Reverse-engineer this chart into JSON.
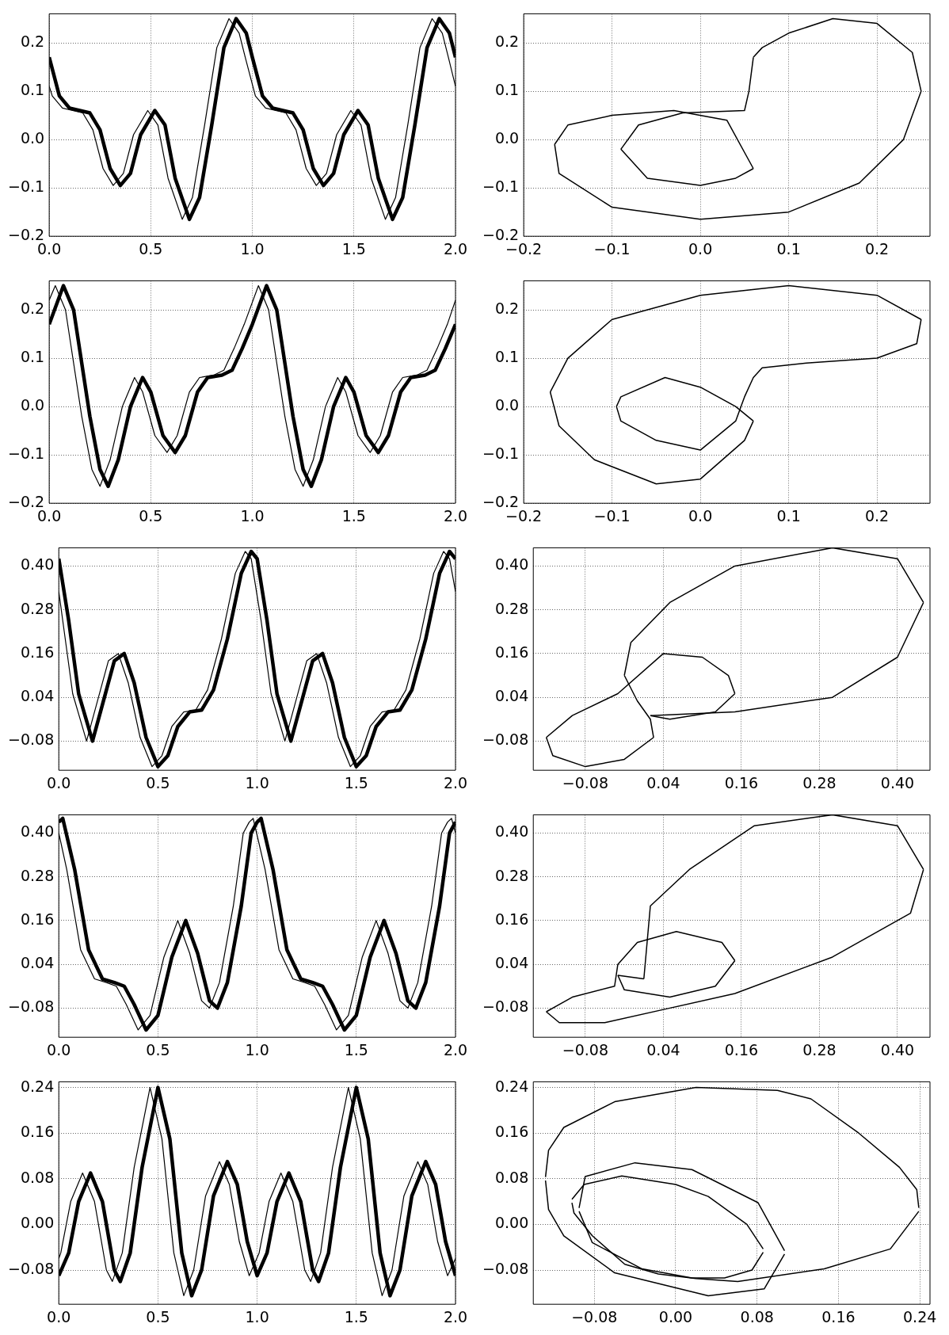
{
  "chart_data": [
    {
      "type": "line",
      "grid": true,
      "xlim": [
        0,
        2
      ],
      "ylim": [
        -0.2,
        0.26
      ],
      "xticks": [
        {
          "value": 0,
          "label": "0.0"
        },
        {
          "value": 0.5,
          "label": "0.5"
        },
        {
          "value": 1,
          "label": "1.0"
        },
        {
          "value": 1.5,
          "label": "1.5"
        },
        {
          "value": 2,
          "label": "2.0"
        }
      ],
      "yticks": [
        {
          "value": -0.2,
          "label": "−0.2"
        },
        {
          "value": -0.1,
          "label": "−0.1"
        },
        {
          "value": 0,
          "label": "0.0"
        },
        {
          "value": 0.1,
          "label": "0.1"
        },
        {
          "value": 0.2,
          "label": "0.2"
        }
      ],
      "series": [
        {
          "color": "#000000",
          "x": [
            0,
            0.015,
            0.065,
            0.115,
            0.165,
            0.215,
            0.265,
            0.315,
            0.365,
            0.415,
            0.485,
            0.535,
            0.585,
            0.655,
            0.705,
            0.765,
            0.825,
            0.885,
            0.935,
            0.965,
            1.015,
            1.065,
            1.115,
            1.165,
            1.215,
            1.265,
            1.315,
            1.365,
            1.415,
            1.485,
            1.535,
            1.585,
            1.655,
            1.705,
            1.765,
            1.825,
            1.885,
            1.935,
            1.965,
            2
          ],
          "values": [
            0.11,
            0.09,
            0.065,
            0.06,
            0.055,
            0.02,
            -0.06,
            -0.095,
            -0.07,
            0.01,
            0.06,
            0.03,
            -0.08,
            -0.165,
            -0.12,
            0.03,
            0.19,
            0.25,
            0.22,
            0.17,
            0.09,
            0.065,
            0.06,
            0.055,
            0.02,
            -0.06,
            -0.095,
            -0.07,
            0.01,
            0.06,
            0.03,
            -0.08,
            -0.165,
            -0.12,
            0.03,
            0.19,
            0.25,
            0.22,
            0.17,
            0.11
          ]
        },
        {
          "color": "#000000",
          "x": [
            0,
            0.05,
            0.1,
            0.15,
            0.2,
            0.25,
            0.3,
            0.35,
            0.4,
            0.45,
            0.52,
            0.57,
            0.62,
            0.69,
            0.74,
            0.8,
            0.86,
            0.92,
            0.97,
            1,
            1.05,
            1.1,
            1.15,
            1.2,
            1.25,
            1.3,
            1.35,
            1.4,
            1.45,
            1.52,
            1.57,
            1.62,
            1.69,
            1.74,
            1.8,
            1.86,
            1.92,
            1.97,
            2
          ],
          "values": [
            0.17,
            0.09,
            0.065,
            0.06,
            0.055,
            0.02,
            -0.06,
            -0.095,
            -0.07,
            0.01,
            0.06,
            0.03,
            -0.08,
            -0.165,
            -0.12,
            0.03,
            0.19,
            0.25,
            0.22,
            0.17,
            0.09,
            0.065,
            0.06,
            0.055,
            0.02,
            -0.06,
            -0.095,
            -0.07,
            0.01,
            0.06,
            0.03,
            -0.08,
            -0.165,
            -0.12,
            0.03,
            0.19,
            0.25,
            0.22,
            0.17
          ]
        }
      ]
    },
    {
      "type": "line",
      "grid": true,
      "xlim": [
        -0.2,
        0.26
      ],
      "ylim": [
        -0.2,
        0.26
      ],
      "xticks": [
        {
          "value": -0.2,
          "label": "−0.2"
        },
        {
          "value": -0.1,
          "label": "−0.1"
        },
        {
          "value": 0,
          "label": "0.0"
        },
        {
          "value": 0.1,
          "label": "0.1"
        },
        {
          "value": 0.2,
          "label": "0.2"
        }
      ],
      "yticks": [
        {
          "value": -0.2,
          "label": "−0.2"
        },
        {
          "value": -0.1,
          "label": "−0.1"
        },
        {
          "value": 0,
          "label": "0.0"
        },
        {
          "value": 0.1,
          "label": "0.1"
        },
        {
          "value": 0.2,
          "label": "0.2"
        }
      ],
      "series": [
        {
          "color": "#000000",
          "x": [
            0.06,
            0.07,
            0.1,
            0.15,
            0.2,
            0.24,
            0.25
          ],
          "values": [
            0.17,
            0.19,
            0.22,
            0.25,
            0.24,
            0.18,
            0.1
          ]
        },
        {
          "color": "#000000",
          "x": [
            -0.165,
            -0.16,
            -0.1,
            0,
            0.1,
            0.18,
            0.23,
            0.25
          ],
          "values": [
            -0.01,
            -0.07,
            -0.14,
            -0.165,
            -0.15,
            -0.09,
            0,
            0.1
          ]
        },
        {
          "color": "#000000",
          "x": [
            -0.165,
            -0.15,
            -0.1,
            -0.03,
            0.03,
            0.06
          ],
          "values": [
            -0.01,
            0.03,
            0.05,
            0.06,
            0.04,
            -0.06
          ]
        },
        {
          "color": "#000000",
          "x": [
            -0.09,
            -0.06,
            0,
            0.04,
            0.06
          ],
          "values": [
            -0.02,
            -0.08,
            -0.095,
            -0.08,
            -0.06
          ]
        },
        {
          "color": "#000000",
          "x": [
            -0.09,
            -0.07,
            -0.02,
            0.05,
            0.055,
            0.06
          ],
          "values": [
            -0.02,
            0.03,
            0.055,
            0.06,
            0.1,
            0.17
          ]
        }
      ]
    },
    {
      "type": "line",
      "grid": true,
      "xlim": [
        0,
        2
      ],
      "ylim": [
        -0.2,
        0.26
      ],
      "xticks": [
        {
          "value": 0,
          "label": "0.0"
        },
        {
          "value": 0.5,
          "label": "0.5"
        },
        {
          "value": 1,
          "label": "1.0"
        },
        {
          "value": 1.5,
          "label": "1.5"
        },
        {
          "value": 2,
          "label": "2.0"
        }
      ],
      "yticks": [
        {
          "value": -0.2,
          "label": "−0.2"
        },
        {
          "value": -0.1,
          "label": "−0.1"
        },
        {
          "value": 0,
          "label": "0.0"
        },
        {
          "value": 0.1,
          "label": "0.1"
        },
        {
          "value": 0.2,
          "label": "0.2"
        }
      ],
      "series": [
        {
          "color": "#000000",
          "x": [
            0,
            0.03,
            0.08,
            0.16,
            0.21,
            0.25,
            0.3,
            0.36,
            0.42,
            0.46,
            0.52,
            0.58,
            0.63,
            0.69,
            0.74,
            0.81,
            0.86,
            0.91,
            0.96,
            1.03,
            1.08,
            1.16,
            1.21,
            1.25,
            1.3,
            1.36,
            1.42,
            1.46,
            1.52,
            1.58,
            1.63,
            1.69,
            1.74,
            1.81,
            1.86,
            1.91,
            1.96,
            2
          ],
          "values": [
            0.22,
            0.25,
            0.2,
            -0.02,
            -0.13,
            -0.165,
            -0.11,
            0,
            0.06,
            0.03,
            -0.06,
            -0.095,
            -0.06,
            0.03,
            0.06,
            0.065,
            0.075,
            0.12,
            0.17,
            0.25,
            0.2,
            -0.02,
            -0.13,
            -0.165,
            -0.11,
            0,
            0.06,
            0.03,
            -0.06,
            -0.095,
            -0.06,
            0.03,
            0.06,
            0.065,
            0.075,
            0.12,
            0.17,
            0.22
          ]
        },
        {
          "color": "#000000",
          "x": [
            0,
            0.07,
            0.12,
            0.2,
            0.25,
            0.29,
            0.34,
            0.4,
            0.46,
            0.5,
            0.56,
            0.62,
            0.67,
            0.73,
            0.78,
            0.85,
            0.9,
            0.95,
            1,
            1.07,
            1.12,
            1.2,
            1.25,
            1.29,
            1.34,
            1.4,
            1.46,
            1.5,
            1.56,
            1.62,
            1.67,
            1.73,
            1.78,
            1.85,
            1.9,
            1.95,
            2
          ],
          "values": [
            0.17,
            0.25,
            0.2,
            -0.02,
            -0.13,
            -0.165,
            -0.11,
            0,
            0.06,
            0.03,
            -0.06,
            -0.095,
            -0.06,
            0.03,
            0.06,
            0.065,
            0.075,
            0.12,
            0.17,
            0.25,
            0.2,
            -0.02,
            -0.13,
            -0.165,
            -0.11,
            0,
            0.06,
            0.03,
            -0.06,
            -0.095,
            -0.06,
            0.03,
            0.06,
            0.065,
            0.075,
            0.12,
            0.17
          ]
        }
      ]
    },
    {
      "type": "line",
      "grid": true,
      "xlim": [
        -0.2,
        0.26
      ],
      "ylim": [
        -0.2,
        0.26
      ],
      "xticks": [
        {
          "value": -0.2,
          "label": "−0.2"
        },
        {
          "value": -0.1,
          "label": "−0.1"
        },
        {
          "value": 0,
          "label": "0.0"
        },
        {
          "value": 0.1,
          "label": "0.1"
        },
        {
          "value": 0.2,
          "label": "0.2"
        }
      ],
      "yticks": [
        {
          "value": -0.2,
          "label": "−0.2"
        },
        {
          "value": -0.1,
          "label": "−0.1"
        },
        {
          "value": 0,
          "label": "0.0"
        },
        {
          "value": 0.1,
          "label": "0.1"
        },
        {
          "value": 0.2,
          "label": "0.2"
        }
      ],
      "series": [
        {
          "color": "#000000",
          "x": [
            -0.17,
            -0.15,
            -0.1,
            0,
            0.1,
            0.2,
            0.25
          ],
          "values": [
            0.03,
            0.1,
            0.18,
            0.23,
            0.25,
            0.23,
            0.18
          ]
        },
        {
          "color": "#000000",
          "x": [
            -0.095,
            -0.09,
            -0.05,
            0,
            0.04,
            0.05,
            0.06,
            0.07,
            0.12,
            0.2,
            0.245,
            0.25
          ],
          "values": [
            0,
            -0.03,
            -0.07,
            -0.09,
            -0.03,
            0.02,
            0.06,
            0.08,
            0.09,
            0.1,
            0.13,
            0.18
          ]
        },
        {
          "color": "#000000",
          "x": [
            -0.095,
            -0.09,
            -0.04,
            0,
            0.04,
            0.06
          ],
          "values": [
            0,
            0.02,
            0.06,
            0.04,
            0,
            -0.03
          ]
        },
        {
          "color": "#000000",
          "x": [
            -0.17,
            -0.16,
            -0.12,
            -0.05,
            0,
            0.05,
            0.06
          ],
          "values": [
            0.03,
            -0.04,
            -0.11,
            -0.16,
            -0.15,
            -0.07,
            -0.03
          ]
        }
      ]
    },
    {
      "type": "line",
      "grid": true,
      "xlim": [
        0,
        2
      ],
      "ylim": [
        -0.16,
        0.45
      ],
      "xticks": [
        {
          "value": 0,
          "label": "0.0"
        },
        {
          "value": 0.5,
          "label": "0.5"
        },
        {
          "value": 1,
          "label": "1.0"
        },
        {
          "value": 1.5,
          "label": "1.5"
        },
        {
          "value": 2,
          "label": "2.0"
        }
      ],
      "yticks": [
        {
          "value": -0.08,
          "label": "−0.08"
        },
        {
          "value": 0.04,
          "label": "0.04"
        },
        {
          "value": 0.16,
          "label": "0.16"
        },
        {
          "value": 0.28,
          "label": "0.28"
        },
        {
          "value": 0.4,
          "label": "0.40"
        }
      ],
      "series": [
        {
          "color": "#000000",
          "x": [
            0,
            0.02,
            0.07,
            0.14,
            0.19,
            0.25,
            0.3,
            0.35,
            0.41,
            0.47,
            0.52,
            0.57,
            0.63,
            0.69,
            0.75,
            0.82,
            0.89,
            0.94,
            0.97,
            1.02,
            1.07,
            1.14,
            1.19,
            1.25,
            1.3,
            1.35,
            1.41,
            1.47,
            1.52,
            1.57,
            1.63,
            1.69,
            1.75,
            1.82,
            1.89,
            1.94,
            1.97,
            2
          ],
          "values": [
            0.33,
            0.25,
            0.05,
            -0.08,
            0.02,
            0.14,
            0.16,
            0.08,
            -0.07,
            -0.15,
            -0.12,
            -0.04,
            0,
            0.005,
            0.06,
            0.2,
            0.38,
            0.44,
            0.42,
            0.25,
            0.05,
            -0.08,
            0.02,
            0.14,
            0.16,
            0.08,
            -0.07,
            -0.15,
            -0.12,
            -0.04,
            0,
            0.005,
            0.06,
            0.2,
            0.38,
            0.44,
            0.42,
            0.33
          ]
        },
        {
          "color": "#000000",
          "x": [
            0,
            0.05,
            0.1,
            0.17,
            0.22,
            0.28,
            0.33,
            0.38,
            0.44,
            0.5,
            0.55,
            0.6,
            0.66,
            0.72,
            0.78,
            0.85,
            0.92,
            0.97,
            1,
            1.05,
            1.1,
            1.17,
            1.22,
            1.28,
            1.33,
            1.38,
            1.44,
            1.5,
            1.55,
            1.6,
            1.66,
            1.72,
            1.78,
            1.85,
            1.92,
            1.97,
            2
          ],
          "values": [
            0.42,
            0.25,
            0.05,
            -0.08,
            0.02,
            0.14,
            0.16,
            0.08,
            -0.07,
            -0.15,
            -0.12,
            -0.04,
            0,
            0.005,
            0.06,
            0.2,
            0.38,
            0.44,
            0.42,
            0.25,
            0.05,
            -0.08,
            0.02,
            0.14,
            0.16,
            0.08,
            -0.07,
            -0.15,
            -0.12,
            -0.04,
            0,
            0.005,
            0.06,
            0.2,
            0.38,
            0.44,
            0.42
          ]
        }
      ]
    },
    {
      "type": "line",
      "grid": true,
      "xlim": [
        -0.16,
        0.45
      ],
      "ylim": [
        -0.16,
        0.45
      ],
      "xticks": [
        {
          "value": -0.08,
          "label": "−0.08"
        },
        {
          "value": 0.04,
          "label": "0.04"
        },
        {
          "value": 0.16,
          "label": "0.16"
        },
        {
          "value": 0.28,
          "label": "0.28"
        },
        {
          "value": 0.4,
          "label": "0.40"
        }
      ],
      "yticks": [
        {
          "value": -0.08,
          "label": "−0.08"
        },
        {
          "value": 0.04,
          "label": "0.04"
        },
        {
          "value": 0.16,
          "label": "0.16"
        },
        {
          "value": 0.28,
          "label": "0.28"
        },
        {
          "value": 0.4,
          "label": "0.40"
        }
      ],
      "series": [
        {
          "color": "#000000",
          "x": [
            0.02,
            0.15,
            0.3,
            0.4,
            0.44
          ],
          "values": [
            -0.01,
            0,
            0.04,
            0.15,
            0.3
          ]
        },
        {
          "color": "#000000",
          "x": [
            -0.02,
            -0.01,
            0.05,
            0.15,
            0.3,
            0.4,
            0.44
          ],
          "values": [
            0.1,
            0.19,
            0.3,
            0.4,
            0.45,
            0.42,
            0.3
          ]
        },
        {
          "color": "#000000",
          "x": [
            -0.02,
            0,
            0.02,
            0.025
          ],
          "values": [
            0.1,
            0.03,
            -0.02,
            -0.07
          ]
        },
        {
          "color": "#000000",
          "x": [
            -0.14,
            -0.13,
            -0.08,
            -0.02,
            0.025
          ],
          "values": [
            -0.07,
            -0.12,
            -0.15,
            -0.13,
            -0.07
          ]
        },
        {
          "color": "#000000",
          "x": [
            -0.14,
            -0.1,
            -0.03,
            0.04,
            0.1,
            0.14,
            0.15
          ],
          "values": [
            -0.07,
            -0.01,
            0.05,
            0.16,
            0.15,
            0.1,
            0.05
          ]
        },
        {
          "color": "#000000",
          "x": [
            0.02,
            0.05,
            0.12,
            0.15
          ],
          "values": [
            -0.01,
            -0.02,
            0,
            0.05
          ]
        }
      ]
    },
    {
      "type": "line",
      "grid": true,
      "xlim": [
        0,
        2
      ],
      "ylim": [
        -0.16,
        0.45
      ],
      "xticks": [
        {
          "value": 0,
          "label": "0.0"
        },
        {
          "value": 0.5,
          "label": "0.5"
        },
        {
          "value": 1,
          "label": "1.0"
        },
        {
          "value": 1.5,
          "label": "1.5"
        },
        {
          "value": 2,
          "label": "2.0"
        }
      ],
      "yticks": [
        {
          "value": -0.08,
          "label": "−0.08"
        },
        {
          "value": 0.04,
          "label": "0.04"
        },
        {
          "value": 0.16,
          "label": "0.16"
        },
        {
          "value": 0.28,
          "label": "0.28"
        },
        {
          "value": 0.4,
          "label": "0.40"
        }
      ],
      "series": [
        {
          "color": "#000000",
          "x": [
            0,
            0.04,
            0.11,
            0.18,
            0.24,
            0.29,
            0.34,
            0.4,
            0.46,
            0.53,
            0.6,
            0.66,
            0.72,
            0.76,
            0.81,
            0.88,
            0.93,
            0.96,
            0.98,
            1.04,
            1.11,
            1.18,
            1.24,
            1.29,
            1.34,
            1.4,
            1.46,
            1.53,
            1.6,
            1.66,
            1.72,
            1.76,
            1.81,
            1.88,
            1.93,
            1.96,
            1.98,
            2
          ],
          "values": [
            0.4,
            0.3,
            0.08,
            0,
            -0.01,
            -0.02,
            -0.07,
            -0.14,
            -0.1,
            0.06,
            0.16,
            0.07,
            -0.06,
            -0.08,
            -0.01,
            0.2,
            0.4,
            0.43,
            0.44,
            0.3,
            0.08,
            0,
            -0.01,
            -0.02,
            -0.07,
            -0.14,
            -0.1,
            0.06,
            0.16,
            0.07,
            -0.06,
            -0.08,
            -0.01,
            0.2,
            0.4,
            0.43,
            0.44,
            0.4
          ]
        },
        {
          "color": "#000000",
          "x": [
            0,
            0.02,
            0.08,
            0.15,
            0.22,
            0.28,
            0.33,
            0.38,
            0.44,
            0.5,
            0.57,
            0.64,
            0.7,
            0.76,
            0.8,
            0.85,
            0.92,
            0.97,
            1,
            1.02,
            1.08,
            1.15,
            1.22,
            1.28,
            1.33,
            1.38,
            1.44,
            1.5,
            1.57,
            1.64,
            1.7,
            1.76,
            1.8,
            1.85,
            1.92,
            1.97,
            2
          ],
          "values": [
            0.43,
            0.44,
            0.3,
            0.08,
            0,
            -0.01,
            -0.02,
            -0.07,
            -0.14,
            -0.1,
            0.06,
            0.16,
            0.07,
            -0.06,
            -0.08,
            -0.01,
            0.2,
            0.4,
            0.43,
            0.44,
            0.3,
            0.08,
            0,
            -0.01,
            -0.02,
            -0.07,
            -0.14,
            -0.1,
            0.06,
            0.16,
            0.07,
            -0.06,
            -0.08,
            -0.01,
            0.2,
            0.4,
            0.43
          ]
        }
      ]
    },
    {
      "type": "line",
      "grid": true,
      "xlim": [
        -0.16,
        0.45
      ],
      "ylim": [
        -0.16,
        0.45
      ],
      "xticks": [
        {
          "value": -0.08,
          "label": "−0.08"
        },
        {
          "value": 0.04,
          "label": "0.04"
        },
        {
          "value": 0.16,
          "label": "0.16"
        },
        {
          "value": 0.28,
          "label": "0.28"
        },
        {
          "value": 0.4,
          "label": "0.40"
        }
      ],
      "yticks": [
        {
          "value": -0.08,
          "label": "−0.08"
        },
        {
          "value": 0.04,
          "label": "0.04"
        },
        {
          "value": 0.16,
          "label": "0.16"
        },
        {
          "value": 0.28,
          "label": "0.28"
        },
        {
          "value": 0.4,
          "label": "0.40"
        }
      ],
      "series": [
        {
          "color": "#000000",
          "x": [
            0.01,
            0.02,
            0.08,
            0.18,
            0.3,
            0.4,
            0.44
          ],
          "values": [
            0,
            0.2,
            0.3,
            0.42,
            0.45,
            0.42,
            0.3
          ]
        },
        {
          "color": "#000000",
          "x": [
            -0.14,
            -0.12,
            -0.05,
            0.05,
            0.15,
            0.3,
            0.42,
            0.44
          ],
          "values": [
            -0.09,
            -0.12,
            -0.12,
            -0.08,
            -0.04,
            0.06,
            0.18,
            0.3
          ]
        },
        {
          "color": "#000000",
          "x": [
            -0.14,
            -0.1,
            -0.035,
            -0.03,
            0,
            0.06,
            0.13,
            0.15
          ],
          "values": [
            -0.09,
            -0.05,
            -0.02,
            0.04,
            0.1,
            0.13,
            0.1,
            0.05
          ]
        },
        {
          "color": "#000000",
          "x": [
            -0.03,
            -0.02,
            0.05,
            0.12,
            0.15
          ],
          "values": [
            0.01,
            -0.03,
            -0.05,
            -0.02,
            0.05
          ]
        },
        {
          "color": "#000000",
          "x": [
            -0.03,
            0.01
          ],
          "values": [
            0.01,
            0
          ]
        }
      ]
    },
    {
      "type": "line",
      "grid": true,
      "xlim": [
        0,
        2
      ],
      "ylim": [
        -0.14,
        0.25
      ],
      "xticks": [
        {
          "value": 0,
          "label": "0.0"
        },
        {
          "value": 0.5,
          "label": "0.5"
        },
        {
          "value": 1,
          "label": "1.0"
        },
        {
          "value": 1.5,
          "label": "1.5"
        },
        {
          "value": 2,
          "label": "2.0"
        }
      ],
      "yticks": [
        {
          "value": -0.08,
          "label": "−0.08"
        },
        {
          "value": 0,
          "label": "0.00"
        },
        {
          "value": 0.08,
          "label": "0.08"
        },
        {
          "value": 0.16,
          "label": "0.16"
        },
        {
          "value": 0.24,
          "label": "0.24"
        }
      ],
      "series": [
        {
          "color": "#000000",
          "x": [
            0,
            0.01,
            0.06,
            0.12,
            0.18,
            0.24,
            0.27,
            0.32,
            0.38,
            0.46,
            0.52,
            0.58,
            0.63,
            0.68,
            0.74,
            0.81,
            0.86,
            0.91,
            0.96,
            1.01,
            1.06,
            1.12,
            1.18,
            1.24,
            1.27,
            1.32,
            1.38,
            1.46,
            1.52,
            1.58,
            1.63,
            1.68,
            1.74,
            1.81,
            1.86,
            1.91,
            1.96,
            2
          ],
          "values": [
            -0.06,
            -0.05,
            0.04,
            0.09,
            0.04,
            -0.08,
            -0.1,
            -0.05,
            0.1,
            0.24,
            0.15,
            -0.05,
            -0.125,
            -0.08,
            0.05,
            0.11,
            0.07,
            -0.03,
            -0.09,
            -0.05,
            0.04,
            0.09,
            0.04,
            -0.08,
            -0.1,
            -0.05,
            0.1,
            0.24,
            0.15,
            -0.05,
            -0.125,
            -0.08,
            0.05,
            0.11,
            0.07,
            -0.03,
            -0.09,
            -0.06
          ]
        },
        {
          "color": "#000000",
          "x": [
            0,
            0.05,
            0.1,
            0.16,
            0.22,
            0.28,
            0.31,
            0.36,
            0.42,
            0.5,
            0.56,
            0.62,
            0.67,
            0.72,
            0.78,
            0.85,
            0.9,
            0.95,
            1,
            1.05,
            1.1,
            1.16,
            1.22,
            1.28,
            1.31,
            1.36,
            1.42,
            1.5,
            1.56,
            1.62,
            1.67,
            1.72,
            1.78,
            1.85,
            1.9,
            1.95,
            2
          ],
          "values": [
            -0.09,
            -0.05,
            0.04,
            0.09,
            0.04,
            -0.08,
            -0.1,
            -0.05,
            0.1,
            0.24,
            0.15,
            -0.05,
            -0.125,
            -0.08,
            0.05,
            0.11,
            0.07,
            -0.03,
            -0.09,
            -0.05,
            0.04,
            0.09,
            0.04,
            -0.08,
            -0.1,
            -0.05,
            0.1,
            0.24,
            0.15,
            -0.05,
            -0.125,
            -0.08,
            0.05,
            0.11,
            0.07,
            -0.03,
            -0.09
          ]
        }
      ]
    },
    {
      "type": "line",
      "grid": true,
      "xlim": [
        -0.14,
        0.25
      ],
      "ylim": [
        -0.14,
        0.25
      ],
      "xticks": [
        {
          "value": -0.08,
          "label": "−0.08"
        },
        {
          "value": 0,
          "label": "0.00"
        },
        {
          "value": 0.08,
          "label": "0.08"
        },
        {
          "value": 0.16,
          "label": "0.16"
        },
        {
          "value": 0.24,
          "label": "0.24"
        }
      ],
      "yticks": [
        {
          "value": -0.08,
          "label": "−0.08"
        },
        {
          "value": 0,
          "label": "0.00"
        },
        {
          "value": 0.08,
          "label": "0.08"
        },
        {
          "value": 0.16,
          "label": "0.16"
        },
        {
          "value": 0.24,
          "label": "0.24"
        }
      ],
      "series": [
        {
          "color": "#000000",
          "x": [
            -0.128,
            -0.125,
            -0.11,
            -0.06,
            0.02,
            0.1,
            0.133,
            0.18,
            0.22,
            0.237,
            0.239
          ],
          "values": [
            0.083,
            0.13,
            0.17,
            0.215,
            0.24,
            0.235,
            0.22,
            0.16,
            0.1,
            0.061,
            0.029
          ]
        },
        {
          "color": "#000000",
          "x": [
            -0.102,
            -0.1,
            -0.082,
            -0.05,
            -0.017,
            0.02,
            0.061,
            0.146,
            0.211,
            0.239
          ],
          "values": [
            0.038,
            0.02,
            -0.02,
            -0.07,
            -0.087,
            -0.095,
            -0.1,
            -0.078,
            -0.043,
            0.023
          ]
        },
        {
          "color": "#000000",
          "x": [
            -0.102,
            -0.09,
            -0.053,
            0,
            0.032,
            0.07,
            0.086
          ],
          "values": [
            0.044,
            0.07,
            0.085,
            0.07,
            0.049,
            0,
            -0.043
          ]
        },
        {
          "color": "#000000",
          "x": [
            -0.095,
            -0.082,
            -0.033,
            0.016,
            0.048,
            0.075,
            0.086
          ],
          "values": [
            0.023,
            -0.032,
            -0.078,
            -0.094,
            -0.094,
            -0.08,
            -0.049
          ]
        },
        {
          "color": "#000000",
          "x": [
            -0.095,
            -0.089,
            -0.04,
            0.016,
            0.081,
            0.107
          ],
          "values": [
            0.029,
            0.084,
            0.108,
            0.096,
            0.038,
            -0.046
          ]
        },
        {
          "color": "#000000",
          "x": [
            -0.128,
            -0.125,
            -0.11,
            -0.06,
            0.032,
            0.087,
            0.107
          ],
          "values": [
            0.077,
            0.026,
            -0.02,
            -0.085,
            -0.125,
            -0.113,
            -0.052
          ]
        }
      ]
    }
  ]
}
